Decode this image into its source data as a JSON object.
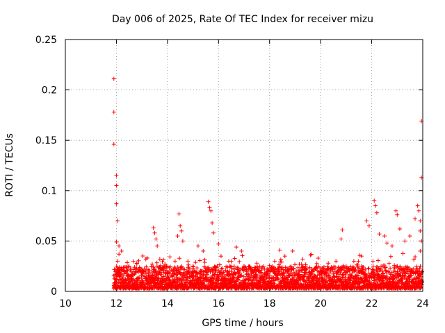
{
  "chart_data": {
    "type": "scatter",
    "title": "Day 006 of 2025, Rate Of TEC Index for receiver mizu",
    "xlabel": "GPS time / hours",
    "ylabel": "ROTI / TECUs",
    "xlim": [
      10,
      24
    ],
    "ylim": [
      0,
      0.25
    ],
    "x_ticks": [
      10,
      12,
      14,
      16,
      18,
      20,
      22,
      24
    ],
    "x_tick_labels": [
      "10",
      "12",
      "14",
      "16",
      "18",
      "20",
      "22",
      "24"
    ],
    "y_ticks": [
      0,
      0.05,
      0.1,
      0.15,
      0.2,
      0.25
    ],
    "y_tick_labels": [
      "0",
      "0.05",
      "0.1",
      "0.15",
      "0.2",
      "0.25"
    ],
    "grid": true,
    "marker": "+",
    "color": "#ff0000",
    "series": [
      {
        "name": "ROTI",
        "points": [
          [
            11.9,
            0.211
          ],
          [
            11.9,
            0.178
          ],
          [
            11.9,
            0.146
          ],
          [
            12.0,
            0.115
          ],
          [
            12.0,
            0.105
          ],
          [
            12.0,
            0.087
          ],
          [
            12.05,
            0.07
          ],
          [
            12.0,
            0.049
          ],
          [
            12.1,
            0.045
          ],
          [
            12.1,
            0.037
          ],
          [
            12.05,
            0.03
          ],
          [
            12.2,
            0.04
          ],
          [
            12.15,
            0.021
          ],
          [
            11.95,
            0.012
          ],
          [
            12.3,
            0.018
          ],
          [
            12.5,
            0.015
          ],
          [
            12.8,
            0.028
          ],
          [
            13.0,
            0.022
          ],
          [
            13.2,
            0.033
          ],
          [
            13.45,
            0.063
          ],
          [
            13.5,
            0.058
          ],
          [
            13.55,
            0.052
          ],
          [
            13.6,
            0.045
          ],
          [
            13.7,
            0.032
          ],
          [
            13.9,
            0.027
          ],
          [
            14.1,
            0.02
          ],
          [
            14.3,
            0.03
          ],
          [
            14.4,
            0.055
          ],
          [
            14.45,
            0.077
          ],
          [
            14.5,
            0.065
          ],
          [
            14.55,
            0.06
          ],
          [
            14.6,
            0.05
          ],
          [
            14.8,
            0.03
          ],
          [
            15.0,
            0.025
          ],
          [
            15.2,
            0.045
          ],
          [
            15.4,
            0.04
          ],
          [
            15.6,
            0.089
          ],
          [
            15.65,
            0.083
          ],
          [
            15.7,
            0.08
          ],
          [
            15.75,
            0.068
          ],
          [
            15.8,
            0.058
          ],
          [
            16.0,
            0.047
          ],
          [
            16.1,
            0.035
          ],
          [
            16.4,
            0.03
          ],
          [
            16.7,
            0.044
          ],
          [
            16.9,
            0.04
          ],
          [
            17.0,
            0.025
          ],
          [
            17.5,
            0.028
          ],
          [
            17.8,
            0.022
          ],
          [
            18.2,
            0.03
          ],
          [
            18.4,
            0.041
          ],
          [
            18.6,
            0.035
          ],
          [
            18.9,
            0.04
          ],
          [
            19.3,
            0.032
          ],
          [
            19.6,
            0.036
          ],
          [
            19.9,
            0.033
          ],
          [
            20.3,
            0.028
          ],
          [
            20.6,
            0.03
          ],
          [
            20.85,
            0.061
          ],
          [
            20.8,
            0.052
          ],
          [
            21.0,
            0.025
          ],
          [
            21.3,
            0.03
          ],
          [
            21.6,
            0.035
          ],
          [
            21.8,
            0.07
          ],
          [
            21.9,
            0.065
          ],
          [
            22.1,
            0.09
          ],
          [
            22.15,
            0.085
          ],
          [
            22.2,
            0.078
          ],
          [
            22.3,
            0.057
          ],
          [
            22.5,
            0.055
          ],
          [
            22.6,
            0.048
          ],
          [
            22.8,
            0.045
          ],
          [
            22.95,
            0.08
          ],
          [
            23.0,
            0.076
          ],
          [
            23.1,
            0.062
          ],
          [
            23.3,
            0.05
          ],
          [
            23.5,
            0.055
          ],
          [
            23.7,
            0.072
          ],
          [
            23.8,
            0.085
          ],
          [
            23.85,
            0.08
          ],
          [
            23.9,
            0.07
          ],
          [
            23.95,
            0.169
          ],
          [
            23.95,
            0.113
          ],
          [
            23.9,
            0.06
          ],
          [
            23.95,
            0.05
          ],
          [
            23.9,
            0.04
          ]
        ]
      }
    ]
  }
}
